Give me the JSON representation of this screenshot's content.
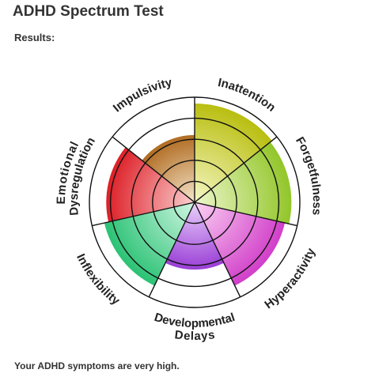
{
  "page": {
    "title": "ADHD Spectrum Test",
    "results_label": "Results:",
    "summary": "Your ADHD symptoms are very high."
  },
  "chart_data": {
    "type": "polar-area",
    "max": 5,
    "rings": 5,
    "categories": [
      "Inattention",
      "Forgetfulness",
      "Hyperactivity",
      "Developmental Delays",
      "Inflexibility",
      "Emotional Dysregulation",
      "Impulsivity"
    ],
    "values": [
      4.7,
      4.6,
      4.4,
      3.2,
      4.4,
      4.2,
      3.2
    ],
    "colors": [
      "#b9be10",
      "#92c62a",
      "#d13ec9",
      "#9a3fd6",
      "#2bc274",
      "#dd1f27",
      "#b06c22"
    ],
    "light_colors": [
      "#f5f7c4",
      "#eef7cc",
      "#fbd2f3",
      "#ead2fb",
      "#d0f6e3",
      "#fbd0d0",
      "#f6e6cc"
    ]
  }
}
